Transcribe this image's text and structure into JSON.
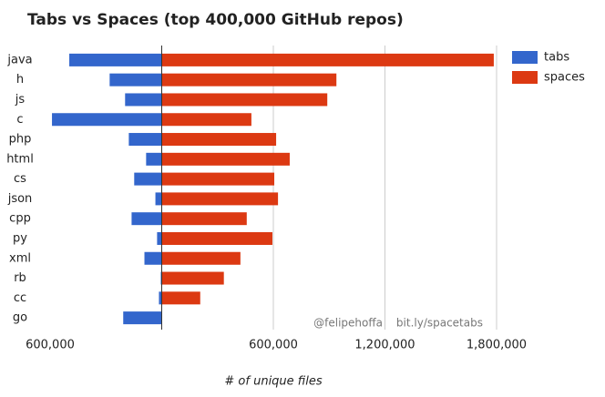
{
  "chart_data": {
    "type": "diverging_bar",
    "title": "Tabs vs Spaces (top 400,000 GitHub repos)",
    "x_label": "# of unique files",
    "annotations": [
      "@felipehoffa",
      "bit.ly/spacetabs"
    ],
    "categories": [
      "java",
      "h",
      "js",
      "c",
      "php",
      "html",
      "cs",
      "json",
      "cpp",
      "py",
      "xml",
      "rb",
      "cc",
      "go"
    ],
    "series": [
      {
        "name": "tabs",
        "color": "#3366cc",
        "values": [
          -497000,
          -280000,
          -197000,
          -590000,
          -177000,
          -84000,
          -148000,
          -34000,
          -162000,
          -25000,
          -93000,
          -5000,
          -15000,
          -207000
        ]
      },
      {
        "name": "spaces",
        "color": "#dc3912",
        "values": [
          1785000,
          939000,
          890000,
          482000,
          615000,
          688000,
          605000,
          625000,
          457000,
          595000,
          423000,
          334000,
          207000,
          0
        ]
      }
    ],
    "xlim": [
      -600000,
      1800000
    ],
    "xticks": [
      {
        "value": -600000,
        "label": "600,000"
      },
      {
        "value": 600000,
        "label": "600,000"
      },
      {
        "value": 1200000,
        "label": "1,200,000"
      },
      {
        "value": 1800000,
        "label": "1,800,000"
      }
    ],
    "grid": true,
    "legend": "top-right"
  }
}
